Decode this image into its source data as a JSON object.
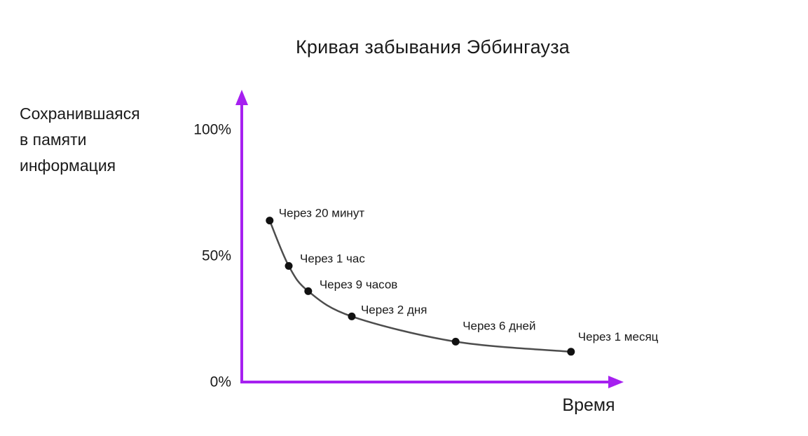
{
  "chart_data": {
    "type": "line",
    "title": "Кривая забывания Эббингауза",
    "ylabel_lines": [
      "Сохранившаяся",
      "в памяти",
      "информация"
    ],
    "xlabel": "Время",
    "ylim": [
      0,
      100
    ],
    "grid": false,
    "legend": false,
    "yticks": [
      {
        "label": "100%",
        "value": 100
      },
      {
        "label": "50%",
        "value": 50
      },
      {
        "label": "0%",
        "value": 0
      }
    ],
    "series": [
      {
        "name": "Сохранившаяся в памяти информация",
        "points": [
          {
            "label": "Через 20 минут",
            "retention_pct": 64,
            "x_frac": 0.073,
            "label_dx": 13,
            "label_dy": -5
          },
          {
            "label": "Через 1 час",
            "retention_pct": 46,
            "x_frac": 0.123,
            "label_dx": 16,
            "label_dy": -5
          },
          {
            "label": "Через 9 часов",
            "retention_pct": 36,
            "x_frac": 0.174,
            "label_dx": 16,
            "label_dy": -4
          },
          {
            "label": "Через 2 дня",
            "retention_pct": 26,
            "x_frac": 0.288,
            "label_dx": 13,
            "label_dy": -4
          },
          {
            "label": "Через 6 дней",
            "retention_pct": 16,
            "x_frac": 0.56,
            "label_dx": 10,
            "label_dy": -17
          },
          {
            "label": "Через 1 месяц",
            "retention_pct": 12,
            "x_frac": 0.862,
            "label_dx": 10,
            "label_dy": -16
          }
        ]
      }
    ],
    "colors": {
      "axis": "#a620f0",
      "curve": "#4d4d4d",
      "point": "#111111",
      "text": "#1a1a1a",
      "background": "#ffffff"
    }
  }
}
